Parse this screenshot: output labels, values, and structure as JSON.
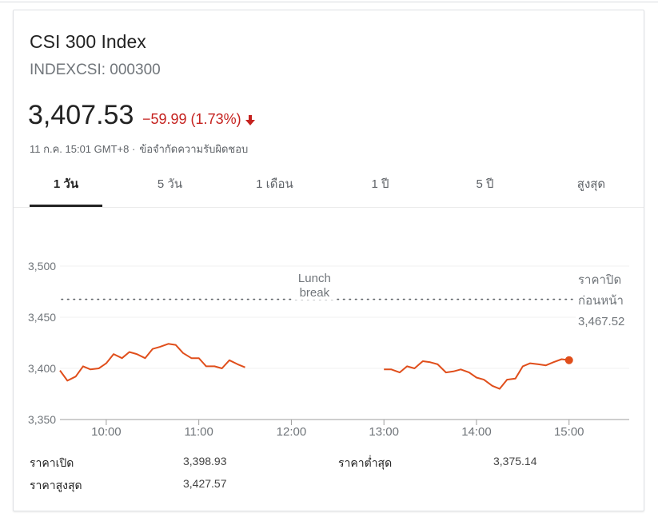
{
  "header": {
    "title": "CSI 300 Index",
    "ticker": "INDEXCSI: 000300",
    "price": "3,407.53",
    "change": "−59.99 (1.73%)",
    "timestamp": "11 ก.ค. 15:01 GMT+8 ·",
    "disclaimer": "ข้อจำกัดความรับผิดชอบ"
  },
  "colors": {
    "negative": "#c5221f",
    "line": "#e04e1b",
    "grid": "#f1f1f1",
    "dotted": "#5f6368"
  },
  "tabs": [
    {
      "label": "1 วัน",
      "active": true
    },
    {
      "label": "5 วัน",
      "active": false
    },
    {
      "label": "1 เดือน",
      "active": false
    },
    {
      "label": "1 ปี",
      "active": false
    },
    {
      "label": "5 ปี",
      "active": false
    },
    {
      "label": "สูงสุด",
      "active": false
    }
  ],
  "stats": {
    "open_label": "ราคาเปิด",
    "open_value": "3,398.93",
    "low_label": "ราคาต่ำสุด",
    "low_value": "3,375.14",
    "high_label": "ราคาสูงสุด",
    "high_value": "3,427.57"
  },
  "chart_data": {
    "type": "line",
    "ylim": [
      3350,
      3500
    ],
    "yticks": [
      "3,500",
      "3,450",
      "3,400",
      "3,350"
    ],
    "ytick_values": [
      3500,
      3450,
      3400,
      3350
    ],
    "xticks": [
      "10:00",
      "11:00",
      "12:00",
      "13:00",
      "14:00",
      "15:00"
    ],
    "xtick_values": [
      10,
      11,
      12,
      13,
      14,
      15
    ],
    "xlim": [
      9.5,
      15.65
    ],
    "prev_close": 3467.52,
    "prev_close_label_line1": "ราคาปิด",
    "prev_close_label_line2": "ก่อนหน้า",
    "prev_close_text": "3,467.52",
    "lunch_label_line1": "Lunch",
    "lunch_label_line2": "break",
    "morning": [
      [
        9.5,
        3398
      ],
      [
        9.58,
        3388
      ],
      [
        9.67,
        3392
      ],
      [
        9.75,
        3402
      ],
      [
        9.83,
        3399
      ],
      [
        9.92,
        3400
      ],
      [
        10.0,
        3405
      ],
      [
        10.08,
        3414
      ],
      [
        10.17,
        3410
      ],
      [
        10.25,
        3416
      ],
      [
        10.33,
        3414
      ],
      [
        10.42,
        3410
      ],
      [
        10.5,
        3419
      ],
      [
        10.58,
        3421
      ],
      [
        10.67,
        3424
      ],
      [
        10.75,
        3423
      ],
      [
        10.83,
        3415
      ],
      [
        10.92,
        3410
      ],
      [
        11.0,
        3410
      ],
      [
        11.08,
        3402
      ],
      [
        11.17,
        3402
      ],
      [
        11.25,
        3400
      ],
      [
        11.33,
        3408
      ],
      [
        11.42,
        3404
      ],
      [
        11.5,
        3401
      ]
    ],
    "afternoon": [
      [
        13.0,
        3399
      ],
      [
        13.08,
        3399
      ],
      [
        13.17,
        3396
      ],
      [
        13.25,
        3402
      ],
      [
        13.33,
        3400
      ],
      [
        13.42,
        3407
      ],
      [
        13.5,
        3406
      ],
      [
        13.58,
        3404
      ],
      [
        13.67,
        3396
      ],
      [
        13.75,
        3397
      ],
      [
        13.83,
        3399
      ],
      [
        13.92,
        3396
      ],
      [
        14.0,
        3391
      ],
      [
        14.08,
        3389
      ],
      [
        14.17,
        3383
      ],
      [
        14.25,
        3380
      ],
      [
        14.33,
        3389
      ],
      [
        14.42,
        3390
      ],
      [
        14.5,
        3402
      ],
      [
        14.58,
        3405
      ],
      [
        14.67,
        3404
      ],
      [
        14.75,
        3403
      ],
      [
        14.83,
        3406
      ],
      [
        14.92,
        3409
      ],
      [
        15.0,
        3408
      ]
    ]
  }
}
